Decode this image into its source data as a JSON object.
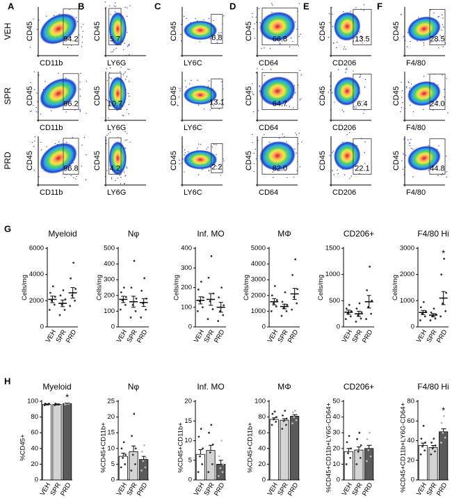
{
  "flow": {
    "rows": [
      "VEH",
      "SPR",
      "PRD"
    ],
    "y_label": "CD45",
    "columns": [
      {
        "letter": "A",
        "marker": "CD11b",
        "percents": [
          "94.2",
          "96.2",
          "96.8"
        ]
      },
      {
        "letter": "B",
        "marker": "LY6G",
        "percents": [
          "5.7",
          "10.7",
          "4.2"
        ]
      },
      {
        "letter": "C",
        "marker": "LY6C",
        "percents": [
          "6.8",
          "13.1",
          "2.2"
        ]
      },
      {
        "letter": "D",
        "marker": "CD64",
        "percents": [
          "66.8",
          "64.7",
          "82.0"
        ]
      },
      {
        "letter": "E",
        "marker": "CD206",
        "percents": [
          "13.5",
          "6.4",
          "22.1"
        ]
      },
      {
        "letter": "F",
        "marker": "F4/80",
        "percents": [
          "28.5",
          "24.0",
          "44.8"
        ]
      }
    ]
  },
  "section_labels": [
    "G",
    "H"
  ],
  "chart_data": [
    {
      "type": "dot",
      "title": "Myeloid",
      "y_label": "Cells/mg",
      "categories": [
        "VEH",
        "SPR",
        "PRD"
      ],
      "ylim": [
        0,
        6000
      ],
      "yticks": [
        0,
        2000,
        4000,
        6000
      ],
      "values": [
        2100,
        1800,
        2600
      ],
      "errors": [
        250,
        250,
        400
      ],
      "significance": [
        null,
        null,
        null
      ],
      "points": [
        [
          1300,
          1700,
          2000,
          2300,
          2600,
          3100
        ],
        [
          900,
          1300,
          1700,
          2100,
          2400,
          2800
        ],
        [
          1600,
          2000,
          2400,
          2900,
          3700,
          4900
        ]
      ]
    },
    {
      "type": "dot",
      "title": "Nφ",
      "y_label": "Cells/mg",
      "categories": [
        "VEH",
        "SPR",
        "PRD"
      ],
      "ylim": [
        0,
        500
      ],
      "yticks": [
        0,
        100,
        200,
        300,
        400,
        500
      ],
      "values": [
        175,
        160,
        155
      ],
      "errors": [
        20,
        35,
        25
      ],
      "significance": [
        null,
        null,
        null
      ],
      "points": [
        [
          110,
          140,
          170,
          190,
          220,
          250
        ],
        [
          60,
          100,
          140,
          180,
          250,
          420
        ],
        [
          60,
          110,
          150,
          180,
          230,
          310
        ]
      ]
    },
    {
      "type": "dot",
      "title": "Inf. MO",
      "y_label": "Cells/mg",
      "categories": [
        "VEH",
        "SPR",
        "PRD"
      ],
      "ylim": [
        0,
        400
      ],
      "yticks": [
        0,
        100,
        200,
        300,
        400
      ],
      "values": [
        135,
        140,
        100
      ],
      "errors": [
        18,
        30,
        25
      ],
      "significance": [
        null,
        null,
        null
      ],
      "points": [
        [
          80,
          100,
          130,
          150,
          190,
          230
        ],
        [
          40,
          90,
          130,
          170,
          250,
          360
        ],
        [
          30,
          60,
          80,
          110,
          150,
          200
        ]
      ]
    },
    {
      "type": "dot",
      "title": "MΦ",
      "y_label": "Cells/mg",
      "categories": [
        "VEH",
        "SPR",
        "PRD"
      ],
      "ylim": [
        0,
        5000
      ],
      "yticks": [
        0,
        1000,
        2000,
        3000,
        4000,
        5000
      ],
      "values": [
        1600,
        1300,
        2100
      ],
      "errors": [
        200,
        150,
        350
      ],
      "significance": [
        null,
        null,
        null
      ],
      "points": [
        [
          1000,
          1300,
          1500,
          1700,
          2000,
          2600
        ],
        [
          700,
          1000,
          1200,
          1400,
          1600,
          2200
        ],
        [
          1100,
          1500,
          1900,
          2400,
          3300,
          4300
        ]
      ]
    },
    {
      "type": "dot",
      "title": "CD206+",
      "y_label": "Cells/mg",
      "categories": [
        "VEH",
        "SPR",
        "PRD"
      ],
      "ylim": [
        0,
        1500
      ],
      "yticks": [
        0,
        500,
        1000,
        1500
      ],
      "values": [
        280,
        250,
        480
      ],
      "errors": [
        40,
        50,
        120
      ],
      "significance": [
        null,
        null,
        null
      ],
      "points": [
        [
          150,
          200,
          260,
          300,
          350,
          420
        ],
        [
          100,
          160,
          220,
          280,
          350,
          450
        ],
        [
          150,
          250,
          380,
          500,
          700,
          1150
        ]
      ]
    },
    {
      "type": "dot",
      "title": "F4/80 Hi",
      "y_label": "Cells/mg",
      "categories": [
        "VEH",
        "SPR",
        "PRD"
      ],
      "ylim": [
        0,
        3000
      ],
      "yticks": [
        0,
        1000,
        2000,
        3000
      ],
      "values": [
        550,
        450,
        1100
      ],
      "errors": [
        80,
        60,
        250
      ],
      "significance": [
        null,
        null,
        "*"
      ],
      "points": [
        [
          250,
          400,
          500,
          600,
          750,
          950
        ],
        [
          250,
          320,
          400,
          480,
          550,
          700
        ],
        [
          400,
          600,
          900,
          1300,
          2000,
          2600
        ]
      ]
    },
    {
      "type": "bar",
      "title": "Myeloid",
      "y_label": "%CD45+",
      "categories": [
        "VEH",
        "SPR",
        "PRD"
      ],
      "ylim": [
        0,
        100
      ],
      "yticks": [
        0,
        20,
        40,
        60,
        80,
        100
      ],
      "values": [
        96,
        96,
        97
      ],
      "errors": [
        0.5,
        0.5,
        0.5
      ],
      "significance": [
        null,
        null,
        "*"
      ],
      "points": [
        [
          95,
          96,
          96,
          97,
          97,
          96
        ],
        [
          95,
          96,
          96,
          96,
          97,
          96
        ],
        [
          96,
          97,
          97,
          98,
          98,
          97
        ]
      ]
    },
    {
      "type": "bar",
      "title": "Nφ",
      "y_label": "%CD45+CD11b+",
      "categories": [
        "VEH",
        "SPR",
        "PRD"
      ],
      "ylim": [
        0,
        25
      ],
      "yticks": [
        0,
        5,
        10,
        15,
        20,
        25
      ],
      "values": [
        7.5,
        9,
        6.5
      ],
      "errors": [
        1,
        1.8,
        1
      ],
      "significance": [
        null,
        null,
        null
      ],
      "points": [
        [
          4,
          5,
          7,
          8,
          10,
          12
        ],
        [
          3,
          5,
          8,
          10,
          14,
          21
        ],
        [
          3,
          4,
          6,
          7,
          9,
          11
        ]
      ]
    },
    {
      "type": "bar",
      "title": "Inf. MO",
      "y_label": "%CD45+CD11b+",
      "categories": [
        "VEH",
        "SPR",
        "PRD"
      ],
      "ylim": [
        0,
        20
      ],
      "yticks": [
        0,
        5,
        10,
        15,
        20
      ],
      "values": [
        6.5,
        7.5,
        4
      ],
      "errors": [
        1.2,
        1.3,
        1
      ],
      "significance": [
        null,
        null,
        null
      ],
      "points": [
        [
          2,
          4,
          6,
          8,
          11,
          13
        ],
        [
          2,
          4,
          7,
          9,
          12,
          14
        ],
        [
          1,
          2,
          3,
          4,
          6,
          10
        ]
      ]
    },
    {
      "type": "bar",
      "title": "MΦ",
      "y_label": "%CD45+CD11b+",
      "categories": [
        "VEH",
        "SPR",
        "PRD"
      ],
      "ylim": [
        0,
        100
      ],
      "yticks": [
        0,
        20,
        40,
        60,
        80,
        100
      ],
      "values": [
        77,
        76,
        81
      ],
      "errors": [
        2,
        2,
        2
      ],
      "significance": [
        null,
        null,
        null
      ],
      "points": [
        [
          70,
          74,
          77,
          80,
          84,
          87
        ],
        [
          65,
          70,
          75,
          78,
          82,
          88
        ],
        [
          72,
          76,
          80,
          83,
          86,
          88
        ]
      ]
    },
    {
      "type": "bar",
      "title": "CD206+",
      "y_label": "%CD45+CD11b+LY6G-CD64+",
      "categories": [
        "VEH",
        "SPR",
        "PRD"
      ],
      "ylim": [
        0,
        50
      ],
      "yticks": [
        0,
        10,
        20,
        30,
        40,
        50
      ],
      "values": [
        18,
        19,
        20
      ],
      "errors": [
        2,
        2,
        2
      ],
      "significance": [
        null,
        null,
        null
      ],
      "points": [
        [
          10,
          14,
          17,
          20,
          24,
          28
        ],
        [
          10,
          14,
          18,
          22,
          26,
          30
        ],
        [
          12,
          15,
          19,
          22,
          26,
          30
        ]
      ]
    },
    {
      "type": "bar",
      "title": "F4/80 Hi",
      "y_label": "%CD45+CD11b+LY6G-CD64+",
      "categories": [
        "VEH",
        "SPR",
        "PRD"
      ],
      "ylim": [
        0,
        80
      ],
      "yticks": [
        0,
        20,
        40,
        60,
        80
      ],
      "values": [
        35,
        33,
        49
      ],
      "errors": [
        2.5,
        2,
        3
      ],
      "significance": [
        null,
        null,
        "*"
      ],
      "points": [
        [
          26,
          30,
          34,
          38,
          42,
          55
        ],
        [
          26,
          29,
          32,
          35,
          38,
          42
        ],
        [
          38,
          43,
          48,
          52,
          58,
          65
        ]
      ]
    }
  ]
}
